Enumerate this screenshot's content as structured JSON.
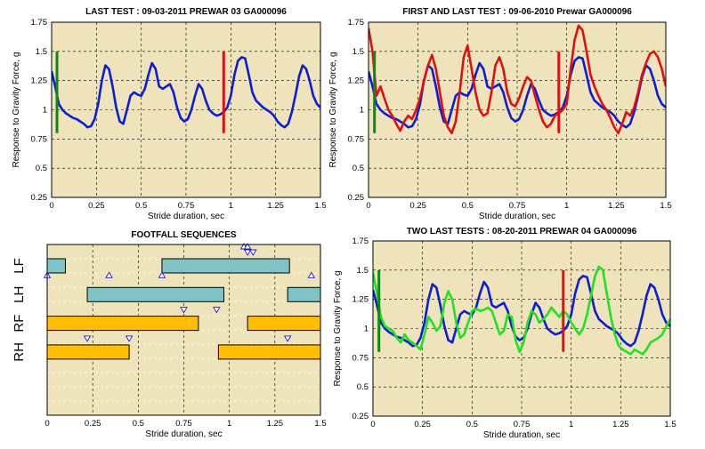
{
  "chart_data": [
    {
      "type": "line",
      "title": "LAST TEST : 09-03-2011 PREWAR 03 GA000096",
      "xlabel": "Stride duration, sec",
      "ylabel": "Response to Gravity Force, g",
      "xlim": [
        0,
        1.5
      ],
      "ylim": [
        0.25,
        1.75
      ],
      "xticks": [
        "0",
        "0.25",
        "0.5",
        "0.75",
        "1",
        "1.25",
        "1.5"
      ],
      "yticks": [
        "0.25",
        "0.5",
        "0.75",
        "1",
        "1.25",
        "1.5",
        "1.75"
      ],
      "grid": true,
      "series": [
        {
          "color": "#0a1ed2",
          "x": [
            0,
            0.02,
            0.04,
            0.06,
            0.08,
            0.1,
            0.12,
            0.14,
            0.16,
            0.18,
            0.2,
            0.22,
            0.24,
            0.26,
            0.28,
            0.3,
            0.32,
            0.34,
            0.36,
            0.38,
            0.4,
            0.42,
            0.44,
            0.46,
            0.48,
            0.5,
            0.52,
            0.54,
            0.56,
            0.58,
            0.6,
            0.62,
            0.64,
            0.66,
            0.68,
            0.7,
            0.72,
            0.74,
            0.76,
            0.78,
            0.8,
            0.82,
            0.84,
            0.86,
            0.88,
            0.9,
            0.92,
            0.94,
            0.96,
            0.98,
            1,
            1.02,
            1.04,
            1.06,
            1.08,
            1.1,
            1.12,
            1.14,
            1.16,
            1.18,
            1.2,
            1.22,
            1.24,
            1.26,
            1.28,
            1.3,
            1.32,
            1.34,
            1.36,
            1.38,
            1.4,
            1.42,
            1.44,
            1.46,
            1.48,
            1.5
          ],
          "y": [
            1.33,
            1.2,
            1.05,
            1,
            0.97,
            0.95,
            0.93,
            0.92,
            0.9,
            0.88,
            0.85,
            0.86,
            0.92,
            1.05,
            1.25,
            1.38,
            1.35,
            1.2,
            1.02,
            0.9,
            0.88,
            1,
            1.12,
            1.15,
            1.13,
            1.12,
            1.18,
            1.3,
            1.4,
            1.35,
            1.2,
            1.18,
            1.2,
            1.22,
            1.15,
            1.02,
            0.93,
            0.9,
            0.92,
            1,
            1.12,
            1.22,
            1.18,
            1.08,
            1,
            0.97,
            0.95,
            0.96,
            0.98,
            1.02,
            1.12,
            1.3,
            1.42,
            1.45,
            1.44,
            1.3,
            1.15,
            1.08,
            1.05,
            1.02,
            1,
            0.98,
            0.95,
            0.9,
            0.87,
            0.85,
            0.88,
            0.98,
            1.12,
            1.28,
            1.38,
            1.35,
            1.25,
            1.12,
            1.05,
            1.02
          ]
        },
        {
          "color": "#0e8a14",
          "marker_x": 0.03,
          "y_range": [
            0.8,
            1.5
          ]
        },
        {
          "color": "#e01010",
          "marker_x": 0.96,
          "y_range": [
            0.8,
            1.5
          ]
        }
      ]
    },
    {
      "type": "line",
      "title": "FIRST AND LAST TEST : 09-06-2010 Prewar GA000096",
      "xlabel": "Stride duration, sec",
      "ylabel": "Response to Gravity Force, g",
      "xlim": [
        0,
        1.5
      ],
      "ylim": [
        0.25,
        1.75
      ],
      "xticks": [
        "0",
        "0.25",
        "0.5",
        "0.75",
        "1",
        "1.25",
        "1.5"
      ],
      "yticks": [
        "0.25",
        "0.5",
        "0.75",
        "1",
        "1.25",
        "1.5",
        "1.75"
      ],
      "grid": true,
      "series": [
        {
          "color": "#0a1ed2",
          "x": [
            0,
            0.02,
            0.04,
            0.06,
            0.08,
            0.1,
            0.12,
            0.14,
            0.16,
            0.18,
            0.2,
            0.22,
            0.24,
            0.26,
            0.28,
            0.3,
            0.32,
            0.34,
            0.36,
            0.38,
            0.4,
            0.42,
            0.44,
            0.46,
            0.48,
            0.5,
            0.52,
            0.54,
            0.56,
            0.58,
            0.6,
            0.62,
            0.64,
            0.66,
            0.68,
            0.7,
            0.72,
            0.74,
            0.76,
            0.78,
            0.8,
            0.82,
            0.84,
            0.86,
            0.88,
            0.9,
            0.92,
            0.94,
            0.96,
            0.98,
            1,
            1.02,
            1.04,
            1.06,
            1.08,
            1.1,
            1.12,
            1.14,
            1.16,
            1.18,
            1.2,
            1.22,
            1.24,
            1.26,
            1.28,
            1.3,
            1.32,
            1.34,
            1.36,
            1.38,
            1.4,
            1.42,
            1.44,
            1.46,
            1.48,
            1.5
          ],
          "y": [
            1.33,
            1.2,
            1.05,
            1,
            0.97,
            0.95,
            0.93,
            0.92,
            0.9,
            0.88,
            0.85,
            0.86,
            0.92,
            1.05,
            1.25,
            1.38,
            1.35,
            1.2,
            1.02,
            0.9,
            0.88,
            1,
            1.12,
            1.15,
            1.13,
            1.12,
            1.18,
            1.3,
            1.4,
            1.35,
            1.2,
            1.18,
            1.2,
            1.22,
            1.15,
            1.02,
            0.93,
            0.9,
            0.92,
            1,
            1.12,
            1.22,
            1.18,
            1.08,
            1,
            0.97,
            0.95,
            0.96,
            0.98,
            1.02,
            1.12,
            1.3,
            1.42,
            1.45,
            1.44,
            1.3,
            1.15,
            1.08,
            1.05,
            1.02,
            1,
            0.98,
            0.95,
            0.9,
            0.87,
            0.85,
            0.88,
            0.98,
            1.12,
            1.28,
            1.38,
            1.35,
            1.25,
            1.12,
            1.05,
            1.02
          ]
        },
        {
          "color": "#e01010",
          "x": [
            0,
            0.02,
            0.04,
            0.06,
            0.08,
            0.1,
            0.12,
            0.14,
            0.16,
            0.18,
            0.2,
            0.22,
            0.24,
            0.26,
            0.28,
            0.3,
            0.32,
            0.34,
            0.36,
            0.38,
            0.4,
            0.42,
            0.44,
            0.46,
            0.48,
            0.5,
            0.52,
            0.54,
            0.56,
            0.58,
            0.6,
            0.62,
            0.64,
            0.66,
            0.68,
            0.7,
            0.72,
            0.74,
            0.76,
            0.78,
            0.8,
            0.82,
            0.84,
            0.86,
            0.88,
            0.9,
            0.92,
            0.94,
            0.96,
            0.98,
            1,
            1.02,
            1.04,
            1.06,
            1.08,
            1.1,
            1.12,
            1.14,
            1.16,
            1.18,
            1.2,
            1.22,
            1.24,
            1.26,
            1.28,
            1.3,
            1.32,
            1.34,
            1.36,
            1.38,
            1.4,
            1.42,
            1.44,
            1.46,
            1.48,
            1.5
          ],
          "y": [
            1.7,
            1.5,
            1.12,
            1.2,
            1.1,
            1,
            0.95,
            0.88,
            0.82,
            0.9,
            0.95,
            0.92,
            1,
            1.1,
            1.25,
            1.38,
            1.47,
            1.35,
            1.15,
            0.95,
            0.85,
            0.8,
            0.9,
            1.15,
            1.45,
            1.55,
            1.35,
            1.15,
            1,
            0.95,
            0.97,
            1.15,
            1.38,
            1.45,
            1.35,
            1.15,
            1.05,
            1.03,
            1.1,
            1.2,
            1.28,
            1.25,
            1.12,
            1,
            0.9,
            0.85,
            0.88,
            0.95,
            0.97,
            1,
            1.05,
            1.35,
            1.6,
            1.72,
            1.68,
            1.5,
            1.3,
            1.2,
            1.12,
            1.05,
            1,
            0.93,
            0.85,
            0.8,
            0.88,
            0.98,
            0.95,
            1.02,
            1.15,
            1.3,
            1.4,
            1.48,
            1.5,
            1.45,
            1.35,
            1.2
          ]
        },
        {
          "color": "#0e8a14",
          "marker_x": 0.03,
          "y_range": [
            0.8,
            1.5
          ]
        },
        {
          "color": "#e01010",
          "marker_x": 0.96,
          "y_range": [
            0.8,
            1.5
          ]
        }
      ]
    },
    {
      "type": "bar",
      "title": "FOOTFALL SEQUENCES",
      "xlabel": "Stride duration, sec",
      "xlim": [
        0,
        1.5
      ],
      "xticks": [
        "0",
        "0.25",
        "0.5",
        "0.75",
        "1",
        "1.25",
        "1.5"
      ],
      "categories": [
        "LF",
        "LH",
        "RF",
        "RH"
      ],
      "grid": true,
      "series": [
        {
          "name": "LF",
          "color": "#7fc4c4",
          "intervals": [
            [
              0,
              0.1
            ],
            [
              0.63,
              1.33
            ]
          ],
          "triangles_up": [
            1.08,
            1.1
          ],
          "triangles_down": [
            1.1,
            1.13
          ]
        },
        {
          "name": "LH",
          "color": "#7fc4c4",
          "intervals": [
            [
              0.22,
              0.97
            ],
            [
              1.32,
              1.5
            ]
          ],
          "triangles_up": [
            0,
            0.34,
            0.63,
            1.45
          ],
          "triangles_down": []
        },
        {
          "name": "RF",
          "color": "#ffbf00",
          "intervals": [
            [
              0,
              0.83
            ],
            [
              1.1,
              1.5
            ]
          ],
          "triangles_up": [],
          "triangles_down": [
            0.75,
            0.93
          ]
        },
        {
          "name": "RH",
          "color": "#ffbf00",
          "intervals": [
            [
              0,
              0.45
            ],
            [
              0.94,
              1.5
            ]
          ],
          "triangles_up": [],
          "triangles_down": [
            0.22,
            0.45,
            1.32
          ]
        }
      ]
    },
    {
      "type": "line",
      "title": "TWO LAST TESTS : 08-20-2011 PREWAR 04 GA000096",
      "xlabel": "Stride duration, sec",
      "ylabel": "Response to Gravity Force, g",
      "xlim": [
        0,
        1.5
      ],
      "ylim": [
        0.25,
        1.75
      ],
      "xticks": [
        "0",
        "0.25",
        "0.5",
        "0.75",
        "1",
        "1.25",
        "1.5"
      ],
      "yticks": [
        "0.25",
        "0.5",
        "0.75",
        "1",
        "1.25",
        "1.5",
        "1.75"
      ],
      "grid": true,
      "series": [
        {
          "color": "#0a1ed2",
          "x": [
            0,
            0.02,
            0.04,
            0.06,
            0.08,
            0.1,
            0.12,
            0.14,
            0.16,
            0.18,
            0.2,
            0.22,
            0.24,
            0.26,
            0.28,
            0.3,
            0.32,
            0.34,
            0.36,
            0.38,
            0.4,
            0.42,
            0.44,
            0.46,
            0.48,
            0.5,
            0.52,
            0.54,
            0.56,
            0.58,
            0.6,
            0.62,
            0.64,
            0.66,
            0.68,
            0.7,
            0.72,
            0.74,
            0.76,
            0.78,
            0.8,
            0.82,
            0.84,
            0.86,
            0.88,
            0.9,
            0.92,
            0.94,
            0.96,
            0.98,
            1,
            1.02,
            1.04,
            1.06,
            1.08,
            1.1,
            1.12,
            1.14,
            1.16,
            1.18,
            1.2,
            1.22,
            1.24,
            1.26,
            1.28,
            1.3,
            1.32,
            1.34,
            1.36,
            1.38,
            1.4,
            1.42,
            1.44,
            1.46,
            1.48,
            1.5
          ],
          "y": [
            1.33,
            1.2,
            1.05,
            1,
            0.97,
            0.95,
            0.93,
            0.92,
            0.9,
            0.88,
            0.85,
            0.86,
            0.92,
            1.05,
            1.25,
            1.38,
            1.35,
            1.2,
            1.02,
            0.9,
            0.88,
            1,
            1.12,
            1.15,
            1.13,
            1.12,
            1.18,
            1.3,
            1.4,
            1.35,
            1.2,
            1.18,
            1.2,
            1.22,
            1.15,
            1.02,
            0.93,
            0.9,
            0.92,
            1,
            1.12,
            1.22,
            1.18,
            1.08,
            1,
            0.97,
            0.95,
            0.96,
            0.98,
            1.02,
            1.12,
            1.3,
            1.42,
            1.45,
            1.44,
            1.3,
            1.15,
            1.08,
            1.05,
            1.02,
            1,
            0.98,
            0.95,
            0.9,
            0.87,
            0.85,
            0.88,
            0.98,
            1.12,
            1.28,
            1.38,
            1.35,
            1.25,
            1.12,
            1.05,
            1.02
          ]
        },
        {
          "color": "#22e022",
          "x": [
            0,
            0.02,
            0.04,
            0.06,
            0.08,
            0.1,
            0.12,
            0.14,
            0.16,
            0.18,
            0.2,
            0.22,
            0.24,
            0.26,
            0.28,
            0.3,
            0.32,
            0.34,
            0.36,
            0.38,
            0.4,
            0.42,
            0.44,
            0.46,
            0.48,
            0.5,
            0.52,
            0.54,
            0.56,
            0.58,
            0.6,
            0.62,
            0.64,
            0.66,
            0.68,
            0.7,
            0.72,
            0.74,
            0.76,
            0.78,
            0.8,
            0.82,
            0.84,
            0.86,
            0.88,
            0.9,
            0.92,
            0.94,
            0.96,
            0.98,
            1,
            1.02,
            1.04,
            1.06,
            1.08,
            1.1,
            1.12,
            1.14,
            1.16,
            1.18,
            1.2,
            1.22,
            1.24,
            1.26,
            1.28,
            1.3,
            1.32,
            1.34,
            1.36,
            1.38,
            1.4,
            1.42,
            1.44,
            1.46,
            1.48,
            1.5
          ],
          "y": [
            1.48,
            1.3,
            1.1,
            1.02,
            1,
            0.98,
            0.92,
            0.88,
            0.95,
            0.9,
            0.88,
            0.85,
            0.82,
            0.95,
            1.1,
            1.05,
            0.98,
            1.02,
            1.22,
            1.32,
            1.25,
            1.05,
            0.92,
            0.95,
            1.05,
            1.15,
            1.17,
            1.15,
            1.16,
            1.18,
            1.15,
            1.05,
            0.95,
            0.98,
            1.12,
            1.1,
            0.9,
            0.8,
            0.88,
            1.05,
            1.15,
            1.12,
            1.05,
            1.08,
            1.12,
            1.18,
            1.14,
            1.1,
            1.15,
            1.12,
            1.05,
            1,
            0.95,
            1,
            1.12,
            1.28,
            1.45,
            1.53,
            1.5,
            1.3,
            1.1,
            0.95,
            0.85,
            0.82,
            0.8,
            0.78,
            0.82,
            0.8,
            0.78,
            0.82,
            0.88,
            0.9,
            0.92,
            0.95,
            1.02,
            1.08
          ]
        },
        {
          "color": "#0e8a14",
          "marker_x": 0.03,
          "y_range": [
            0.8,
            1.5
          ]
        },
        {
          "color": "#e01010",
          "marker_x": 0.96,
          "y_range": [
            0.8,
            1.5
          ]
        }
      ]
    }
  ]
}
